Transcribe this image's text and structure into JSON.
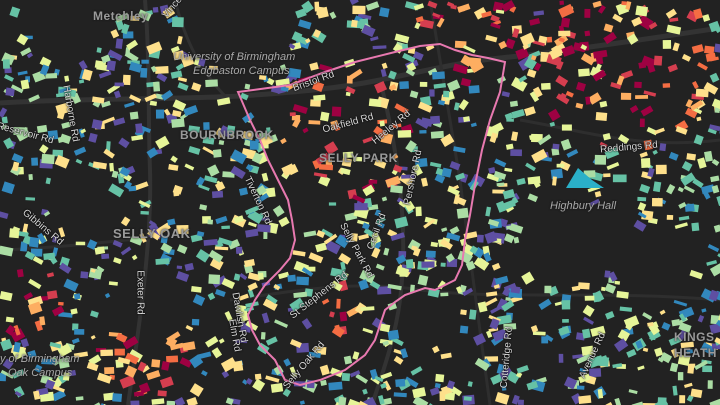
{
  "map": {
    "background": "#222222",
    "boundary_color": "#e879b0",
    "palette": [
      "#5e4fa2",
      "#3288bd",
      "#66c2a5",
      "#abdda4",
      "#e6f598",
      "#fee08b",
      "#fdae61",
      "#f46d43",
      "#d53e4f",
      "#9e0142"
    ],
    "areas": [
      {
        "id": "metchley",
        "text": "Metchley"
      },
      {
        "id": "bournbrook",
        "text": "BOURNBROOK"
      },
      {
        "id": "selly-park",
        "text": "SELLY PARK"
      },
      {
        "id": "selly-oak",
        "text": "SELLY OAK"
      },
      {
        "id": "kings-heath",
        "line1": "KINGS",
        "line2": "HEATH"
      }
    ],
    "pois": [
      {
        "id": "uob-edgbaston",
        "line1": "University of Birmingham",
        "line2": "Edgbaston Campus"
      },
      {
        "id": "highbury-hall",
        "text": "Highbury Hall"
      },
      {
        "id": "uob-selly-oak",
        "line1": "y of Birmingham",
        "line2": "Oak Campus"
      }
    ],
    "roads": [
      {
        "id": "bristol-rd",
        "text": "Bristol Rd"
      },
      {
        "id": "pershore-rd",
        "text": "Pershore Rd"
      },
      {
        "id": "oakfield-rd",
        "text": "Oakfield Rd"
      },
      {
        "id": "heeley-rd",
        "text": "Heeley Rd"
      },
      {
        "id": "selly-park-rd",
        "text": "Selly Park Rd"
      },
      {
        "id": "tiverton-rd",
        "text": "Tiverton Rd"
      },
      {
        "id": "exeter-rd",
        "text": "Exeter Rd"
      },
      {
        "id": "elm-rd",
        "text": "Elm Rd"
      },
      {
        "id": "selly-oak-rd",
        "text": "Selly Oak Rd"
      },
      {
        "id": "harborne-rd",
        "text": "Harborne Rd"
      },
      {
        "id": "reservoir-rd",
        "text": "Reservoir Rd"
      },
      {
        "id": "gibbins-rd",
        "text": "Gibbins Rd"
      },
      {
        "id": "dawlish-rd",
        "text": "Dawlish Rd"
      },
      {
        "id": "vincent-dr",
        "text": "Vince"
      },
      {
        "id": "reddings-rd",
        "text": "Reddings Rd"
      },
      {
        "id": "cecil-rd",
        "text": "Cecil Rd"
      },
      {
        "id": "cotteridge-rd",
        "text": "Cotteridge Rd"
      },
      {
        "id": "avenue-rd",
        "text": "Avenue Rd"
      },
      {
        "id": "st-stephens-rd",
        "text": "St Stephens Rd"
      }
    ]
  }
}
